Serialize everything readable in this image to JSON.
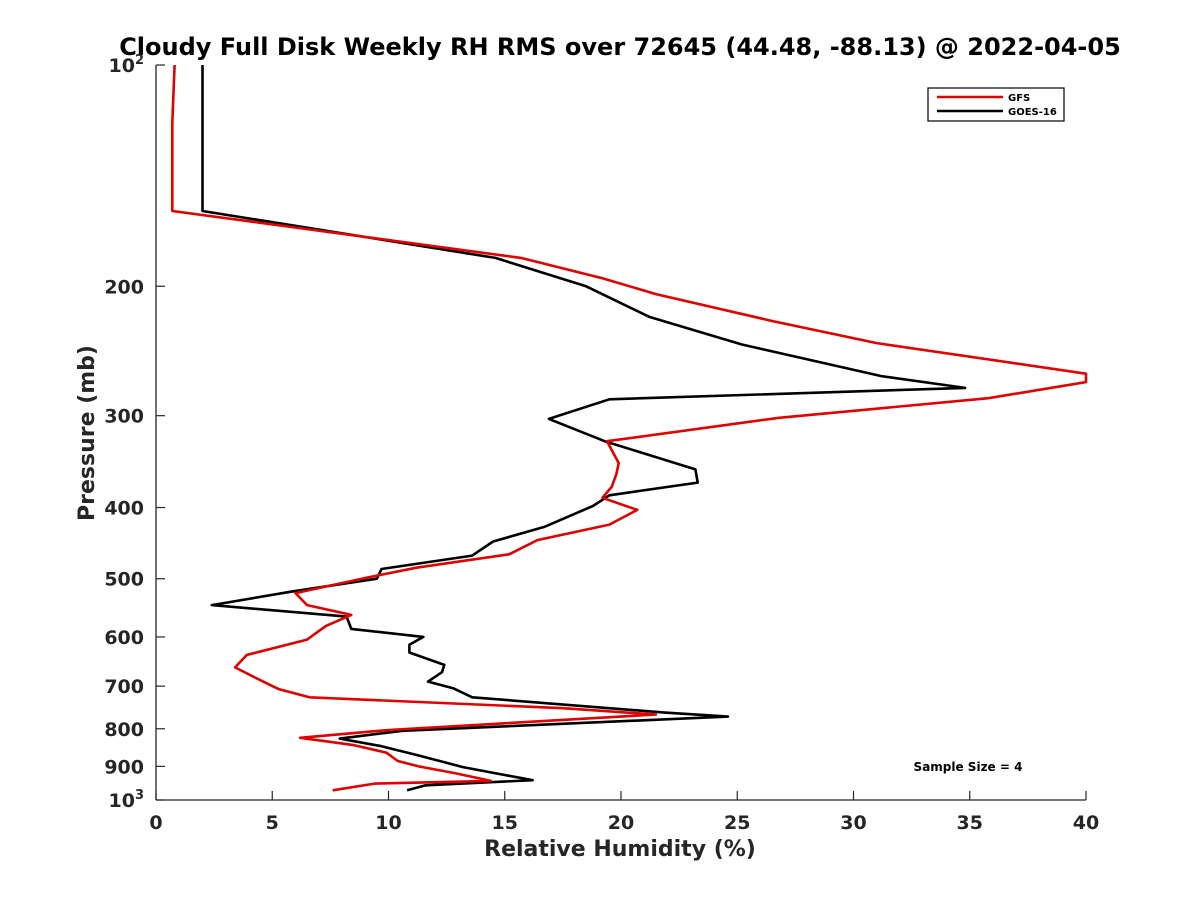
{
  "chart_data": {
    "type": "line",
    "title": "Cloudy Full Disk Weekly RH RMS over 72645 (44.48, -88.13) @ 2022-04-05",
    "xlabel": "Relative Humidity (%)",
    "ylabel": "Pressure (mb)",
    "xlim": [
      0,
      40
    ],
    "ylim": [
      100,
      1000
    ],
    "yscale": "log",
    "y_reversed": true,
    "xticks": [
      "0",
      "5",
      "10",
      "15",
      "20",
      "25",
      "30",
      "35",
      "40"
    ],
    "yticks": [
      {
        "value": 100,
        "label": "10",
        "sup": "2"
      },
      {
        "value": 200,
        "label": "200",
        "sup": ""
      },
      {
        "value": 300,
        "label": "300",
        "sup": ""
      },
      {
        "value": 400,
        "label": "400",
        "sup": ""
      },
      {
        "value": 500,
        "label": "500",
        "sup": ""
      },
      {
        "value": 600,
        "label": "600",
        "sup": ""
      },
      {
        "value": 700,
        "label": "700",
        "sup": ""
      },
      {
        "value": 800,
        "label": "800",
        "sup": ""
      },
      {
        "value": 900,
        "label": "900",
        "sup": ""
      },
      {
        "value": 1000,
        "label": "10",
        "sup": "3"
      }
    ],
    "legend_position": "top-right",
    "annotation": "Sample Size = 4",
    "series": [
      {
        "name": "GFS",
        "color": "#e00000",
        "x": [
          0.8,
          0.7,
          0.7,
          0.7,
          15.7,
          19.2,
          21.5,
          26.5,
          31.0,
          40.0,
          40.0,
          35.8,
          26.8,
          19.4,
          19.9,
          19.8,
          19.6,
          19.2,
          20.7,
          19.5,
          16.4,
          15.2,
          11.2,
          9.1,
          6.0,
          6.5,
          8.4,
          7.3,
          6.5,
          3.9,
          3.4,
          4.2,
          5.0,
          5.3,
          6.6,
          17.5,
          21.5,
          10.0,
          6.2,
          8.5,
          9.9,
          10.4,
          11.3,
          12.9,
          14.4,
          9.4,
          7.6
        ],
        "y": [
          100,
          120,
          140,
          158,
          183,
          195,
          205,
          223,
          239,
          263,
          270,
          284,
          302,
          325,
          348,
          360,
          375,
          388,
          403,
          422,
          443,
          463,
          483,
          498,
          523,
          543,
          560,
          580,
          605,
          635,
          660,
          680,
          700,
          707,
          725,
          750,
          765,
          803,
          823,
          842,
          862,
          885,
          900,
          920,
          942,
          950,
          970
        ]
      },
      {
        "name": "GOES-16",
        "color": "#000000",
        "x": [
          2.0,
          2.0,
          2.0,
          2.0,
          14.6,
          18.5,
          21.2,
          25.2,
          31.2,
          34.8,
          19.5,
          16.9,
          19.3,
          23.2,
          23.3,
          19.5,
          18.8,
          16.7,
          14.5,
          13.6,
          9.7,
          9.5,
          5.9,
          2.4,
          8.2,
          8.4,
          11.5,
          10.9,
          10.9,
          12.4,
          12.3,
          11.7,
          12.8,
          13.6,
          21.8,
          24.6,
          10.6,
          7.9,
          9.7,
          11.3,
          13.2,
          16.2,
          11.6,
          10.8
        ],
        "y": [
          100,
          120,
          140,
          158,
          183,
          200,
          220,
          240,
          265,
          275,
          285,
          303,
          325,
          355,
          370,
          385,
          398,
          425,
          445,
          465,
          485,
          500,
          520,
          543,
          563,
          585,
          600,
          615,
          630,
          655,
          670,
          690,
          705,
          725,
          760,
          770,
          805,
          825,
          845,
          870,
          902,
          940,
          955,
          970
        ]
      }
    ]
  }
}
